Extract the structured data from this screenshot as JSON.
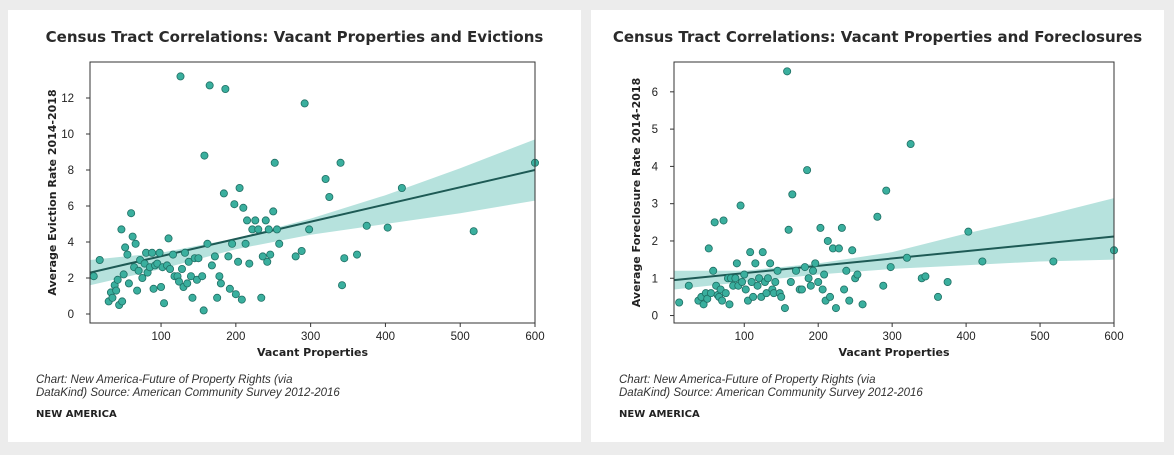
{
  "chart_data": [
    {
      "type": "scatter",
      "title": "Census Tract Correlations: Vacant Properties and Evictions",
      "xlabel": "Vacant Properties",
      "ylabel": "Average Eviction Rate 2014-2018",
      "xlim": [
        5,
        600
      ],
      "ylim": [
        -0.5,
        14
      ],
      "xticks": [
        100,
        200,
        300,
        400,
        500,
        600
      ],
      "yticks": [
        0,
        2,
        4,
        6,
        8,
        10,
        12
      ],
      "grid": false,
      "point_color": "#3aaf9e",
      "trend_color": "#1e5a55",
      "band_color": "#a9ddd7",
      "trend": {
        "x": [
          5,
          600
        ],
        "y": [
          2.3,
          8.0
        ]
      },
      "confidence_band": {
        "x": [
          5,
          100,
          200,
          300,
          400,
          500,
          600
        ],
        "lower": [
          1.6,
          2.5,
          3.6,
          4.4,
          5.0,
          5.6,
          6.3
        ],
        "upper": [
          3.0,
          3.4,
          4.2,
          5.3,
          6.6,
          8.1,
          9.7
        ]
      },
      "points": [
        [
          10,
          2.1
        ],
        [
          18,
          3.0
        ],
        [
          30,
          0.7
        ],
        [
          33,
          1.2
        ],
        [
          35,
          0.9
        ],
        [
          38,
          1.6
        ],
        [
          40,
          1.3
        ],
        [
          42,
          1.9
        ],
        [
          44,
          0.5
        ],
        [
          47,
          4.7
        ],
        [
          48,
          0.7
        ],
        [
          50,
          2.2
        ],
        [
          52,
          3.7
        ],
        [
          55,
          3.3
        ],
        [
          57,
          1.7
        ],
        [
          60,
          5.6
        ],
        [
          62,
          4.3
        ],
        [
          64,
          2.6
        ],
        [
          66,
          3.9
        ],
        [
          68,
          1.3
        ],
        [
          70,
          2.4
        ],
        [
          72,
          3.0
        ],
        [
          75,
          2.0
        ],
        [
          78,
          2.8
        ],
        [
          80,
          3.4
        ],
        [
          82,
          2.3
        ],
        [
          85,
          2.6
        ],
        [
          88,
          3.4
        ],
        [
          90,
          1.4
        ],
        [
          92,
          2.7
        ],
        [
          95,
          2.8
        ],
        [
          98,
          3.4
        ],
        [
          100,
          1.5
        ],
        [
          102,
          2.6
        ],
        [
          104,
          0.6
        ],
        [
          108,
          2.7
        ],
        [
          110,
          4.2
        ],
        [
          112,
          2.5
        ],
        [
          116,
          3.3
        ],
        [
          118,
          2.1
        ],
        [
          122,
          2.1
        ],
        [
          124,
          1.8
        ],
        [
          126,
          13.2
        ],
        [
          128,
          2.5
        ],
        [
          130,
          1.5
        ],
        [
          132,
          3.4
        ],
        [
          135,
          1.7
        ],
        [
          137,
          2.9
        ],
        [
          140,
          2.1
        ],
        [
          142,
          0.9
        ],
        [
          145,
          3.1
        ],
        [
          148,
          1.9
        ],
        [
          150,
          3.1
        ],
        [
          155,
          2.1
        ],
        [
          157,
          0.2
        ],
        [
          158,
          8.8
        ],
        [
          162,
          3.9
        ],
        [
          165,
          12.7
        ],
        [
          168,
          2.7
        ],
        [
          172,
          3.2
        ],
        [
          175,
          0.9
        ],
        [
          178,
          2.1
        ],
        [
          180,
          1.7
        ],
        [
          184,
          6.7
        ],
        [
          186,
          12.5
        ],
        [
          190,
          3.2
        ],
        [
          192,
          1.4
        ],
        [
          195,
          3.9
        ],
        [
          198,
          6.1
        ],
        [
          200,
          1.1
        ],
        [
          203,
          2.9
        ],
        [
          205,
          7.0
        ],
        [
          208,
          0.8
        ],
        [
          210,
          5.9
        ],
        [
          213,
          3.9
        ],
        [
          215,
          5.2
        ],
        [
          218,
          2.8
        ],
        [
          222,
          4.7
        ],
        [
          226,
          5.2
        ],
        [
          230,
          4.7
        ],
        [
          234,
          0.9
        ],
        [
          236,
          3.2
        ],
        [
          240,
          5.2
        ],
        [
          242,
          2.9
        ],
        [
          244,
          4.7
        ],
        [
          246,
          3.3
        ],
        [
          250,
          5.7
        ],
        [
          252,
          8.4
        ],
        [
          255,
          4.7
        ],
        [
          258,
          3.9
        ],
        [
          280,
          3.2
        ],
        [
          288,
          3.5
        ],
        [
          292,
          11.7
        ],
        [
          298,
          4.7
        ],
        [
          320,
          7.5
        ],
        [
          325,
          6.5
        ],
        [
          340,
          8.4
        ],
        [
          342,
          1.6
        ],
        [
          345,
          3.1
        ],
        [
          362,
          3.3
        ],
        [
          375,
          4.9
        ],
        [
          403,
          4.8
        ],
        [
          422,
          7.0
        ],
        [
          518,
          4.6
        ],
        [
          600,
          8.4
        ]
      ]
    },
    {
      "type": "scatter",
      "title": "Census Tract Correlations: Vacant Properties and Foreclosures",
      "xlabel": "Vacant Properties",
      "ylabel": "Average Foreclosure Rate 2014-2018",
      "xlim": [
        5,
        600
      ],
      "ylim": [
        -0.2,
        6.8
      ],
      "xticks": [
        100,
        200,
        300,
        400,
        500,
        600
      ],
      "yticks": [
        0,
        1,
        2,
        3,
        4,
        5,
        6
      ],
      "grid": false,
      "point_color": "#3aaf9e",
      "trend_color": "#1e5a55",
      "band_color": "#a9ddd7",
      "trend": {
        "x": [
          5,
          600
        ],
        "y": [
          0.95,
          2.12
        ]
      },
      "confidence_band": {
        "x": [
          5,
          100,
          200,
          300,
          400,
          500,
          600
        ],
        "lower": [
          0.7,
          0.9,
          1.1,
          1.25,
          1.35,
          1.45,
          1.5
        ],
        "upper": [
          1.2,
          1.2,
          1.4,
          1.7,
          2.2,
          2.65,
          3.15
        ]
      },
      "points": [
        [
          12,
          0.35
        ],
        [
          25,
          0.8
        ],
        [
          38,
          0.4
        ],
        [
          42,
          0.5
        ],
        [
          45,
          0.3
        ],
        [
          48,
          0.6
        ],
        [
          50,
          0.45
        ],
        [
          52,
          1.8
        ],
        [
          55,
          0.6
        ],
        [
          58,
          1.2
        ],
        [
          60,
          2.5
        ],
        [
          62,
          0.8
        ],
        [
          64,
          0.55
        ],
        [
          66,
          0.5
        ],
        [
          68,
          0.7
        ],
        [
          70,
          0.4
        ],
        [
          72,
          2.55
        ],
        [
          75,
          0.6
        ],
        [
          78,
          1.0
        ],
        [
          80,
          0.3
        ],
        [
          82,
          1.0
        ],
        [
          85,
          0.8
        ],
        [
          88,
          1.0
        ],
        [
          90,
          1.4
        ],
        [
          92,
          0.8
        ],
        [
          95,
          2.95
        ],
        [
          97,
          0.9
        ],
        [
          100,
          1.1
        ],
        [
          102,
          0.7
        ],
        [
          105,
          0.4
        ],
        [
          108,
          1.7
        ],
        [
          110,
          0.9
        ],
        [
          112,
          0.5
        ],
        [
          115,
          1.4
        ],
        [
          118,
          0.8
        ],
        [
          120,
          1.0
        ],
        [
          123,
          0.5
        ],
        [
          125,
          1.7
        ],
        [
          128,
          0.9
        ],
        [
          130,
          0.6
        ],
        [
          132,
          1.0
        ],
        [
          135,
          1.4
        ],
        [
          138,
          0.7
        ],
        [
          140,
          0.6
        ],
        [
          142,
          0.9
        ],
        [
          145,
          1.2
        ],
        [
          148,
          0.6
        ],
        [
          150,
          0.5
        ],
        [
          155,
          0.2
        ],
        [
          158,
          6.55
        ],
        [
          160,
          2.3
        ],
        [
          163,
          0.9
        ],
        [
          165,
          3.25
        ],
        [
          170,
          1.2
        ],
        [
          175,
          0.7
        ],
        [
          178,
          0.7
        ],
        [
          182,
          1.3
        ],
        [
          185,
          3.9
        ],
        [
          187,
          1.0
        ],
        [
          190,
          0.8
        ],
        [
          193,
          1.2
        ],
        [
          196,
          1.4
        ],
        [
          200,
          0.9
        ],
        [
          203,
          2.35
        ],
        [
          206,
          0.7
        ],
        [
          208,
          1.1
        ],
        [
          210,
          0.4
        ],
        [
          213,
          2.0
        ],
        [
          216,
          0.5
        ],
        [
          220,
          1.8
        ],
        [
          224,
          0.2
        ],
        [
          228,
          1.8
        ],
        [
          232,
          2.35
        ],
        [
          235,
          0.7
        ],
        [
          238,
          1.2
        ],
        [
          242,
          0.4
        ],
        [
          246,
          1.75
        ],
        [
          250,
          1.0
        ],
        [
          253,
          1.1
        ],
        [
          260,
          0.3
        ],
        [
          280,
          2.65
        ],
        [
          288,
          0.8
        ],
        [
          292,
          3.35
        ],
        [
          298,
          1.3
        ],
        [
          320,
          1.55
        ],
        [
          325,
          4.6
        ],
        [
          340,
          1.0
        ],
        [
          345,
          1.05
        ],
        [
          362,
          0.5
        ],
        [
          375,
          0.9
        ],
        [
          403,
          2.25
        ],
        [
          422,
          1.45
        ],
        [
          518,
          1.45
        ],
        [
          600,
          1.75
        ]
      ]
    }
  ],
  "captions": [
    {
      "source_line1": "Chart: New America-Future of Property Rights (via",
      "source_line2": "DataKind) Source: American Community Survey 2012-2016",
      "brand": "NEW AMERICA"
    },
    {
      "source_line1": "Chart: New America-Future of Property Rights (via",
      "source_line2": "DataKind) Source: American Community Survey 2012-2016",
      "brand": "NEW AMERICA"
    }
  ]
}
